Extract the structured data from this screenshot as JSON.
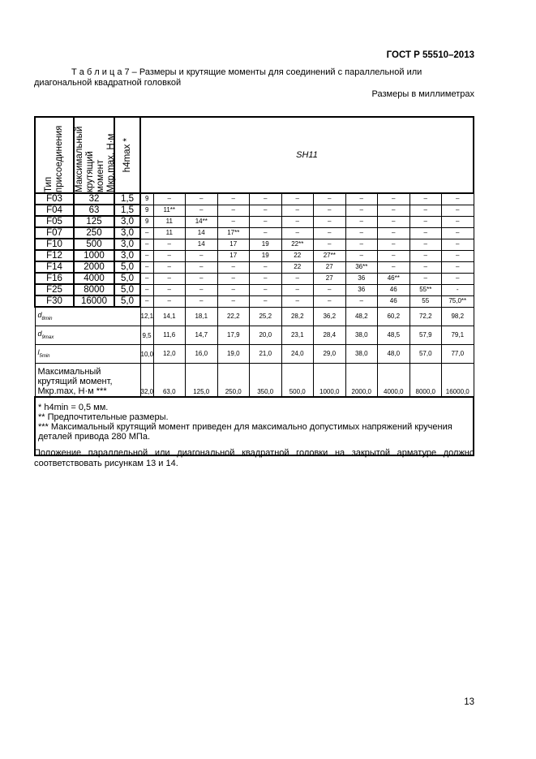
{
  "header": "ГОСТ Р 55510–2013",
  "caption_line1": "Т а б л и ц а  7 – Размеры и крутящие моменты для соединений с параллельной или",
  "caption_line2": "диагональной квадратной головкой",
  "units": "Размеры в миллиметрах",
  "table": {
    "col_headers": [
      "Тип присоединения",
      "Максимальный крутящий момент Mкр.max, Н·м",
      "h4max *"
    ],
    "group_header": "SH11",
    "rows": [
      {
        "type": "F03",
        "torque": "32",
        "h4": "1,5",
        "cells": [
          "9",
          "–",
          "–",
          "–",
          "–",
          "–",
          "–",
          "–",
          "–",
          "–",
          "–"
        ]
      },
      {
        "type": "F04",
        "torque": "63",
        "h4": "1,5",
        "cells": [
          "9",
          "11**",
          "–",
          "–",
          "–",
          "–",
          "–",
          "–",
          "–",
          "–",
          "–"
        ]
      },
      {
        "type": "F05",
        "torque": "125",
        "h4": "3,0",
        "cells": [
          "9",
          "11",
          "14**",
          "–",
          "–",
          "–",
          "–",
          "–",
          "–",
          "–",
          "–"
        ]
      },
      {
        "type": "F07",
        "torque": "250",
        "h4": "3,0",
        "cells": [
          "–",
          "11",
          "14",
          "17**",
          "–",
          "–",
          "–",
          "–",
          "–",
          "–",
          "–"
        ]
      },
      {
        "type": "F10",
        "torque": "500",
        "h4": "3,0",
        "cells": [
          "–",
          "–",
          "14",
          "17",
          "19",
          "22**",
          "–",
          "–",
          "–",
          "–",
          "–"
        ]
      },
      {
        "type": "F12",
        "torque": "1000",
        "h4": "3,0",
        "cells": [
          "–",
          "–",
          "–",
          "17",
          "19",
          "22",
          "27**",
          "–",
          "–",
          "–",
          "–"
        ]
      },
      {
        "type": "F14",
        "torque": "2000",
        "h4": "5,0",
        "cells": [
          "–",
          "–",
          "–",
          "–",
          "–",
          "22",
          "27",
          "36**",
          "–",
          "–",
          "–"
        ]
      },
      {
        "type": "F16",
        "torque": "4000",
        "h4": "5,0",
        "cells": [
          "–",
          "–",
          "–",
          "–",
          "–",
          "–",
          "27",
          "36",
          "46**",
          "–",
          "–"
        ]
      },
      {
        "type": "F25",
        "torque": "8000",
        "h4": "5,0",
        "cells": [
          "–",
          "–",
          "–",
          "–",
          "–",
          "–",
          "–",
          "36",
          "46",
          "55**",
          "-"
        ]
      },
      {
        "type": "F30",
        "torque": "16000",
        "h4": "5,0",
        "cells": [
          "–",
          "–",
          "–",
          "–",
          "–",
          "–",
          "–",
          "–",
          "46",
          "55",
          "75,0**"
        ]
      }
    ],
    "params": [
      {
        "label": "d",
        "sub": "8min",
        "cells": [
          "12,1",
          "14,1",
          "18,1",
          "22,2",
          "25,2",
          "28,2",
          "36,2",
          "48,2",
          "60,2",
          "72,2",
          "98,2"
        ]
      },
      {
        "label": "d",
        "sub": "9max",
        "cells": [
          "9,5",
          "11,6",
          "14,7",
          "17,9",
          "20,0",
          "23,1",
          "28,4",
          "38,0",
          "48,5",
          "57,9",
          "79,1"
        ]
      },
      {
        "label": "l",
        "sub": "5min",
        "cells": [
          "10,0",
          "12,0",
          "16,0",
          "19,0",
          "21,0",
          "24,0",
          "29,0",
          "38,0",
          "48,0",
          "57,0",
          "77,0"
        ]
      }
    ],
    "max_row": {
      "label": "Максимальный крутящий момент, Mкр.max, Н·м ***",
      "cells": [
        "32,0",
        "63,0",
        "125,0",
        "250,0",
        "350,0",
        "500,0",
        "1000,0",
        "2000,0",
        "4000,0",
        "8000,0",
        "16000,0"
      ]
    },
    "footnotes": [
      "* h4min = 0,5 мм.",
      "** Предпочтительные размеры.",
      "*** Максимальный крутящий момент приведен для максимально допустимых напряжений кручения деталей привода 280 МПа."
    ]
  },
  "after_text": "Положение параллельной или диагональной квадратной головки на закрытой арматуре должно соответствовать рисункам 13 и 14.",
  "page_number": "13"
}
